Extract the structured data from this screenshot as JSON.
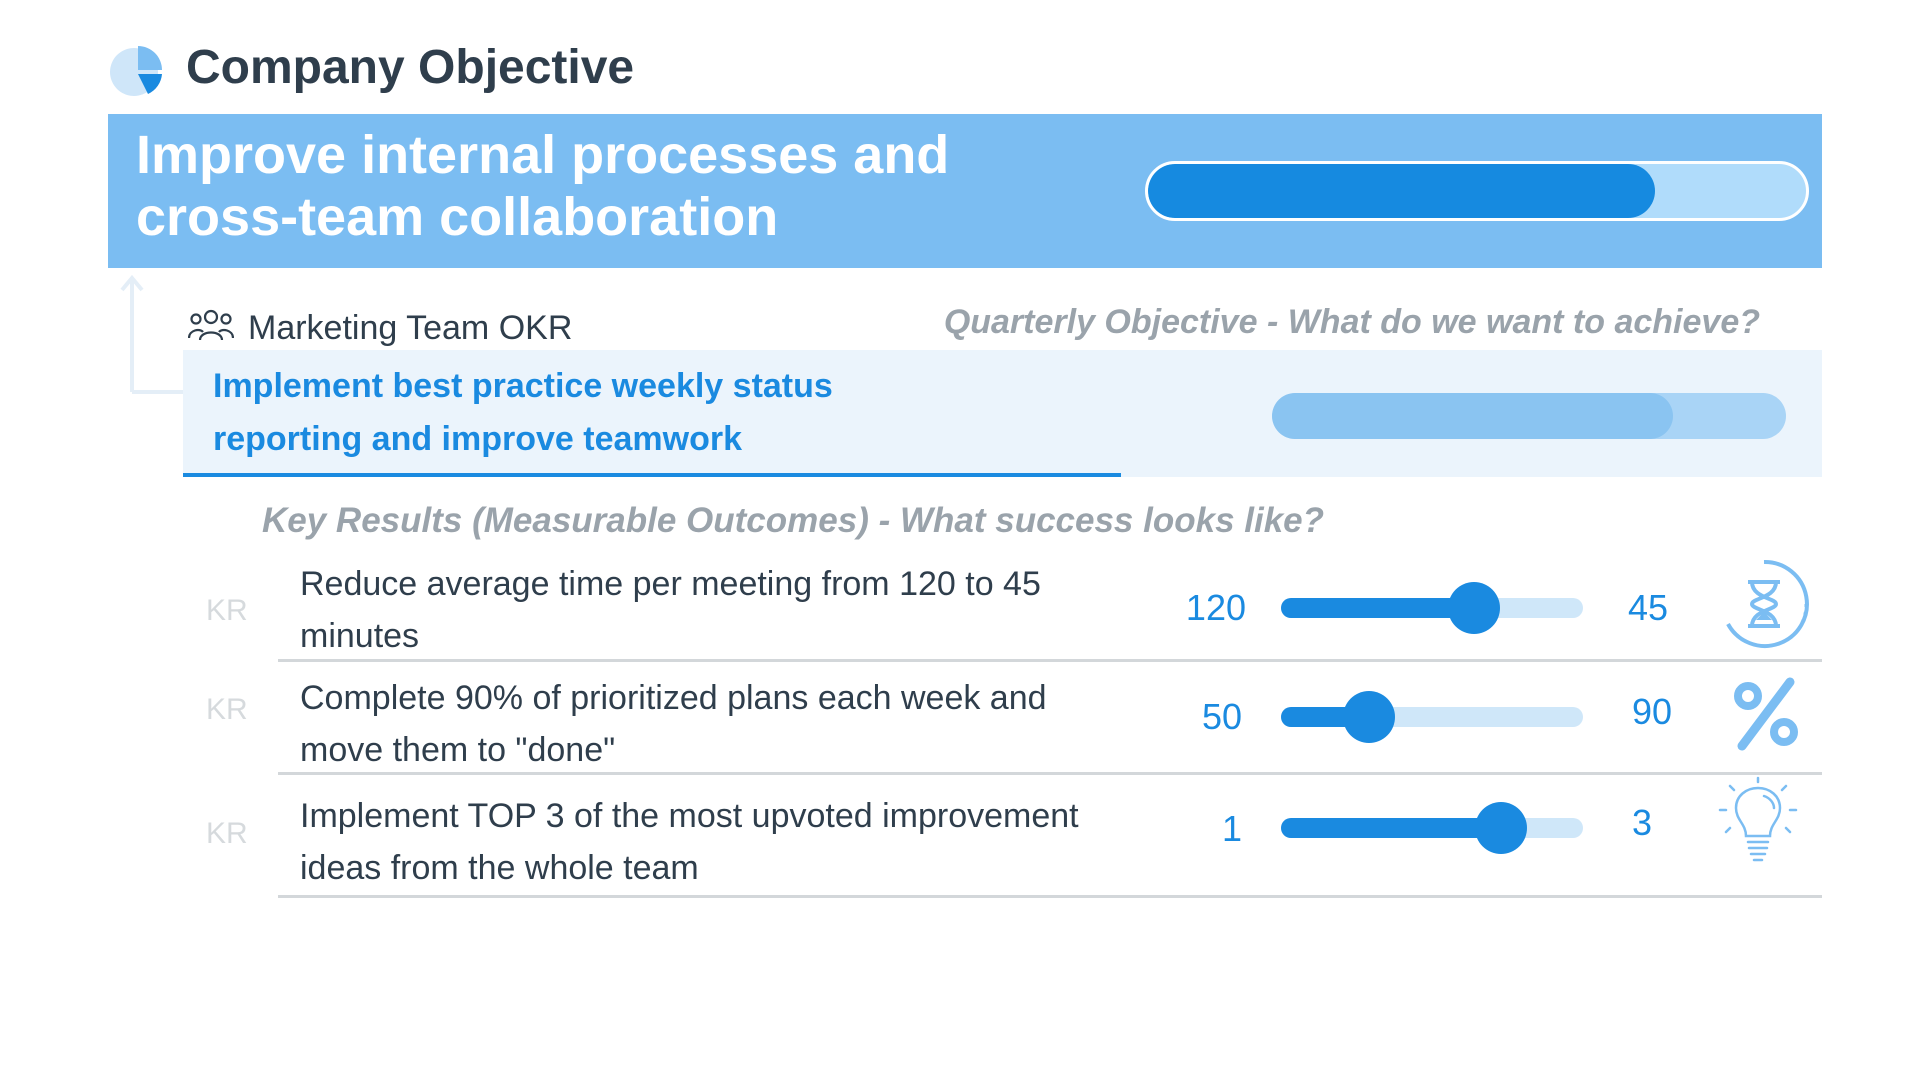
{
  "header": {
    "title": "Company Objective",
    "icon": "pie-chart-icon"
  },
  "company_objective": {
    "text": "Improve internal processes and cross-team collaboration",
    "progress": 0.77,
    "colors": {
      "banner": "#7bbdf2",
      "fill": "#168ae0",
      "track": "#b0dcfb"
    }
  },
  "team": {
    "icon": "team-icon",
    "label": "Marketing Team OKR",
    "section_label": "Quarterly Objective - What do we want to achieve?",
    "objective": "Implement best practice weekly status reporting and improve teamwork",
    "progress": 0.78
  },
  "key_results": {
    "section_label": "Key Results (Measurable Outcomes) - What success looks like?",
    "items": [
      {
        "tag": "KR",
        "text": "Reduce average time per meeting from 120 to 45 minutes",
        "from": "120",
        "to": "45",
        "progress": 0.64,
        "icon": "hourglass-icon"
      },
      {
        "tag": "KR",
        "text": "Complete 90% of prioritized plans each week and move them to \"done\"",
        "from": "50",
        "to": "90",
        "progress": 0.29,
        "icon": "percent-icon"
      },
      {
        "tag": "KR",
        "text": "Implement TOP 3 of the most upvoted improvement ideas from the whole team",
        "from": "1",
        "to": "3",
        "progress": 0.73,
        "icon": "lightbulb-icon"
      }
    ]
  },
  "accent_color": "#1a8ae0"
}
